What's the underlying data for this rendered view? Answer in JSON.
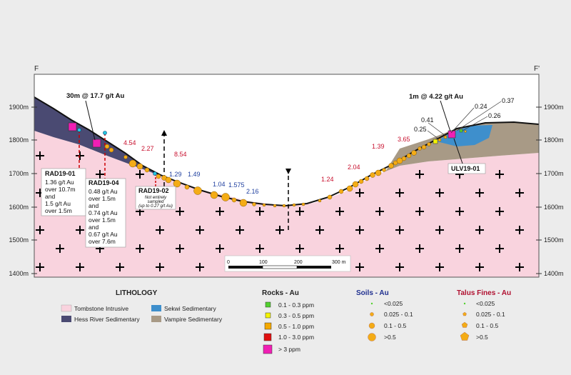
{
  "section": {
    "left_label": "F",
    "right_label": "F'"
  },
  "elevations": [
    "1900m",
    "1800m",
    "1700m",
    "1600m",
    "1500m",
    "1400m"
  ],
  "scale_bar": {
    "ticks": [
      "0",
      "100",
      "200",
      "300 m"
    ]
  },
  "callouts": {
    "left_top": "30m @ 17.7 g/t Au",
    "right_top": "1m @ 4.22 g/t Au"
  },
  "drillholes": {
    "rad1901": {
      "name": "RAD19-01",
      "lines": [
        "1.36 g/t Au",
        "over 10.7m",
        "and",
        "1.5 g/t Au",
        "over 1.5m"
      ]
    },
    "rad1904": {
      "name": "RAD19-04",
      "lines": [
        "0.48 g/t Au",
        "over 1.5m",
        "and",
        "0.74 g/t Au",
        "over 1.5m",
        "and",
        "0.67 g/t Au",
        "over 7.6m"
      ]
    },
    "rad1902": {
      "name": "RAD19-02",
      "lines": [
        "Not entirely",
        "sampled",
        "(up to 0.27 g/t Au)"
      ]
    },
    "ulv1901": {
      "name": "ULV19-01"
    }
  },
  "values": {
    "red": [
      "4.54",
      "2.27",
      "8.54",
      "1.39",
      "3.65",
      "2.04",
      "1.24"
    ],
    "blue": [
      "1.29",
      "1.49",
      "1.04",
      "1.575",
      "2.16"
    ],
    "black": [
      "0.41",
      "0.25",
      "0.24",
      "0.26",
      "0.37"
    ]
  },
  "legend": {
    "lithology": {
      "title": "LITHOLOGY",
      "items": [
        {
          "label": "Tombstone Intrusive",
          "color": "#f9d3de"
        },
        {
          "label": "Hess River Sedimentary",
          "color": "#4a4a72"
        },
        {
          "label": "Sekwi Sedimentary",
          "color": "#3e8fcc"
        },
        {
          "label": "Vampire Sedimentary",
          "color": "#a89a86"
        }
      ]
    },
    "rocks": {
      "title": "Rocks - Au",
      "items": [
        {
          "label": "0.1 - 0.3 ppm",
          "color": "#52d12e"
        },
        {
          "label": "0.3 - 0.5 ppm",
          "color": "#f4f400"
        },
        {
          "label": "0.5 - 1.0 ppm",
          "color": "#f4a800"
        },
        {
          "label": "1.0 - 3.0 ppm",
          "color": "#e01010"
        },
        {
          "label": "> 3 ppm",
          "color": "#f01fb4"
        }
      ]
    },
    "soils": {
      "title": "Soils - Au",
      "items": [
        {
          "label": "<0.025"
        },
        {
          "label": "0.025 - 0.1"
        },
        {
          "label": "0.1 - 0.5"
        },
        {
          "label": ">0.5"
        }
      ]
    },
    "talus": {
      "title": "Talus Fines - Au",
      "items": [
        {
          "label": "<0.025"
        },
        {
          "label": "0.025 - 0.1"
        },
        {
          "label": "0.1 - 0.5"
        },
        {
          "label": ">0.5"
        }
      ]
    }
  },
  "colors": {
    "soil_fill": "#f4ac16",
    "soils_title": "#1f2f8f",
    "talus_title": "#b01030",
    "red_text": "#c8102e",
    "blue_text": "#1f3f9f"
  }
}
